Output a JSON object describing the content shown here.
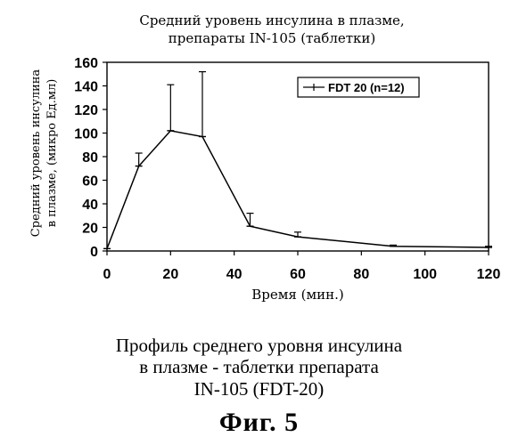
{
  "chart_data": {
    "type": "line",
    "title_line1": "Средний уровень инсулина в плазме,",
    "title_line2": "препараты IN-105 (таблетки)",
    "ylabel_line1": "Средний уровень инсулина",
    "ylabel_line2": "в плазме, (микро Ед.мл)",
    "xlabel": "Время (мин.)",
    "xlim": [
      0,
      120
    ],
    "ylim": [
      0,
      160
    ],
    "x_ticks": [
      0,
      20,
      40,
      60,
      80,
      100,
      120
    ],
    "y_ticks": [
      0,
      20,
      40,
      60,
      80,
      100,
      120,
      140,
      160
    ],
    "legend_position": "top-right",
    "grid": false,
    "series": [
      {
        "name": "FDT 20 (n=12)",
        "x": [
          0,
          10,
          20,
          30,
          45,
          60,
          90,
          120
        ],
        "y": [
          2,
          72,
          102,
          97,
          21,
          12,
          4,
          3
        ],
        "error_upper": [
          0,
          11,
          39,
          55,
          11,
          4,
          1,
          1
        ],
        "color": "#000000"
      }
    ]
  },
  "caption": {
    "line1": "Профиль среднего уровня инсулина",
    "line2": "в плазме - таблетки препарата",
    "line3": "IN-105 (FDT-20)",
    "figure_label": "Фиг.  5"
  }
}
